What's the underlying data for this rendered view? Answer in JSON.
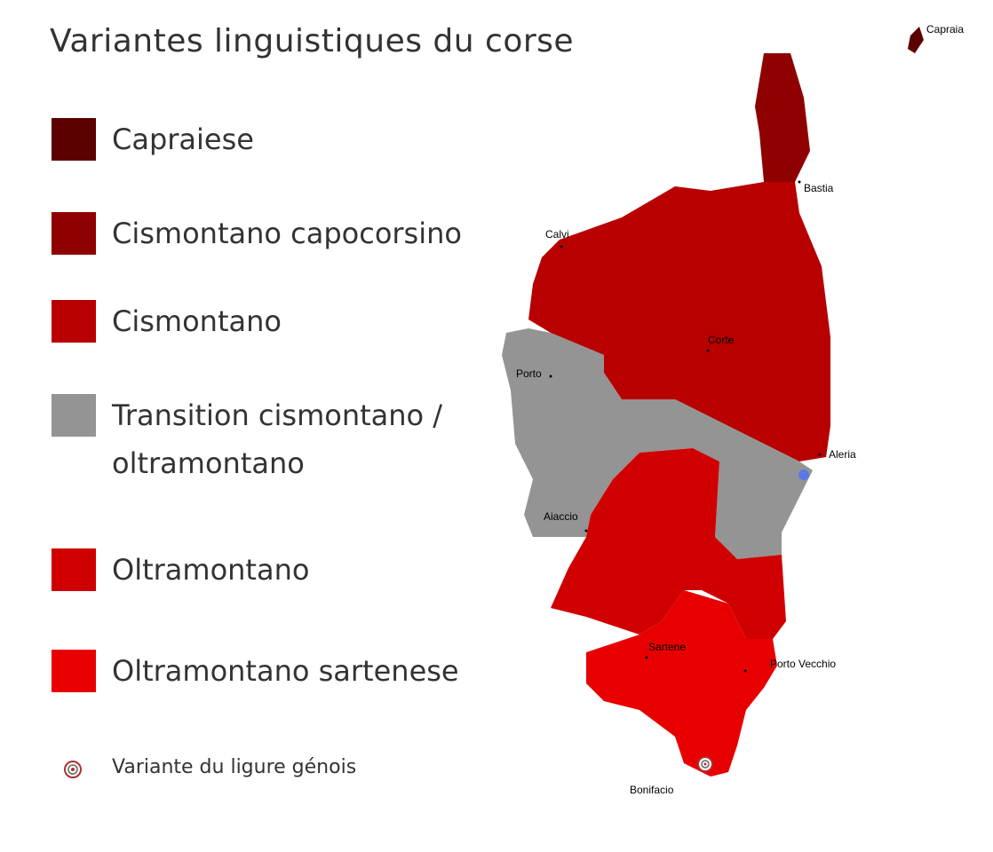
{
  "title": "Variantes linguistiques du corse",
  "legend": [
    {
      "label": "Capraiese",
      "color": "#5c0000"
    },
    {
      "label": "Cismontano capocorsino",
      "color": "#8f0000"
    },
    {
      "label": "Cismontano",
      "color": "#b80000"
    },
    {
      "label": "Transition cismontano / oltramontano",
      "color": "#949494"
    },
    {
      "label": "Oltramontano",
      "color": "#d00000"
    },
    {
      "label": "Oltramontano sartenese",
      "color": "#e80000"
    }
  ],
  "marker_legend": "Variante du ligure génois",
  "places": [
    "Capraia",
    "Bastia",
    "Calvi",
    "Corte",
    "Porto",
    "Aleria",
    "Aiaccio",
    "Sartene",
    "Porto Vecchio",
    "Bonifacio"
  ]
}
